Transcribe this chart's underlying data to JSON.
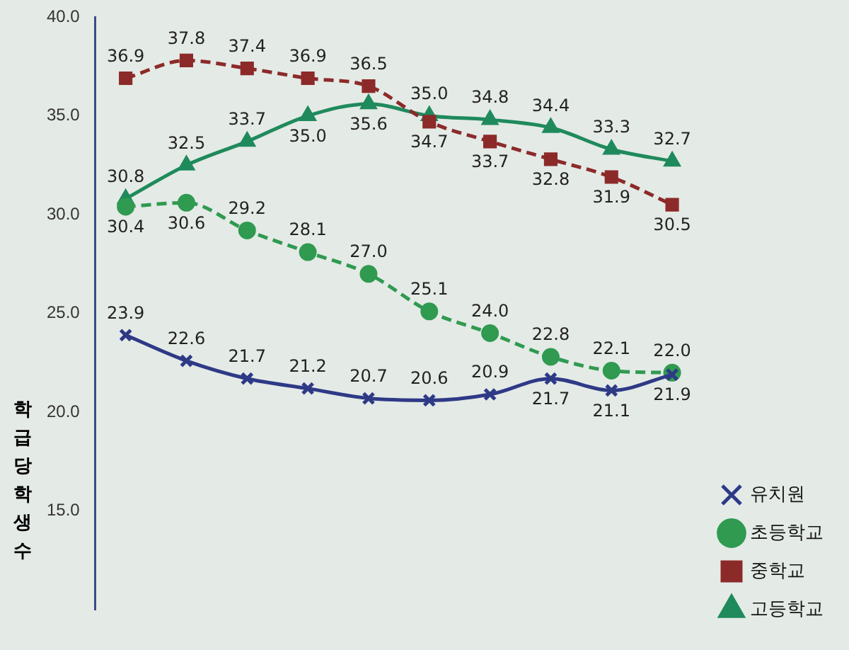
{
  "chart_data": {
    "type": "line",
    "ylabel": "학급당학생수",
    "categories": [
      null,
      null,
      null,
      null,
      null,
      null,
      null,
      null,
      null,
      null
    ],
    "ylim": [
      10,
      40
    ],
    "yticks": [
      {
        "value": 15,
        "label": "15.0"
      },
      {
        "value": 20,
        "label": "20.0"
      },
      {
        "value": 25,
        "label": "25.0"
      },
      {
        "value": 30,
        "label": "30.0"
      },
      {
        "value": 35,
        "label": "35.0"
      },
      {
        "value": 40,
        "label": "40.0"
      }
    ],
    "grid": false,
    "legend": "bottom right",
    "series": [
      {
        "name": "유치원",
        "color": "#2e3a86",
        "marker": "cross",
        "line_style": "solid",
        "values": [
          23.9,
          22.6,
          21.7,
          21.2,
          20.7,
          20.6,
          20.9,
          21.7,
          21.1,
          21.9
        ],
        "value_labels": [
          "23.9",
          "22.6",
          "21.7",
          "21.2",
          "20.7",
          "20.6",
          "20.9",
          "21.7",
          "21.1",
          "21.9"
        ]
      },
      {
        "name": "초등학교",
        "color": "#2f9a50",
        "marker": "circle",
        "line_style": "dashed",
        "values": [
          30.4,
          30.6,
          29.2,
          28.1,
          27.0,
          25.1,
          24.0,
          22.8,
          22.1,
          22.0
        ],
        "value_labels": [
          "30.4",
          "30.6",
          "29.2",
          "28.1",
          "27.0",
          "25.1",
          "24.0",
          "22.8",
          "22.1",
          "22.0"
        ]
      },
      {
        "name": "중학교",
        "color": "#8c2a2a",
        "marker": "square",
        "line_style": "dashed",
        "values": [
          36.9,
          37.8,
          37.4,
          36.9,
          36.5,
          34.7,
          33.7,
          32.8,
          31.9,
          30.5
        ],
        "value_labels": [
          "36.9",
          "37.8",
          "37.4",
          "36.9",
          "36.5",
          "34.7",
          "33.7",
          "32.8",
          "31.9",
          "30.5"
        ]
      },
      {
        "name": "고등학교",
        "color": "#1f8a5c",
        "marker": "triangle",
        "line_style": "solid",
        "values": [
          30.8,
          32.5,
          33.7,
          35.0,
          35.6,
          35.0,
          34.8,
          34.4,
          33.3,
          32.7
        ],
        "value_labels": [
          "30.8",
          "32.5",
          "33.7",
          "35.0",
          "35.6",
          "35.0",
          "34.8",
          "34.4",
          "33.3",
          "32.7"
        ]
      }
    ]
  }
}
